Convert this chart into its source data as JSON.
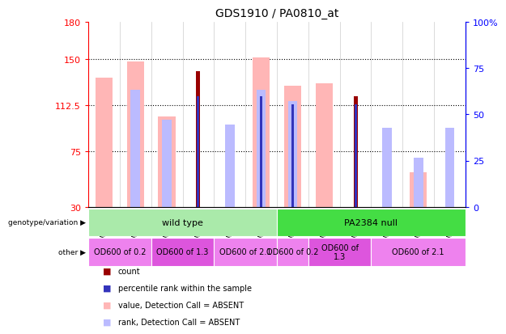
{
  "title": "GDS1910 / PA0810_at",
  "samples": [
    "GSM63145",
    "GSM63154",
    "GSM63149",
    "GSM63157",
    "GSM63152",
    "GSM63162",
    "GSM63125",
    "GSM63153",
    "GSM63147",
    "GSM63155",
    "GSM63150",
    "GSM63158"
  ],
  "ylim_left": [
    30,
    180
  ],
  "ylim_right": [
    0,
    100
  ],
  "yticks_left": [
    30,
    75,
    112.5,
    150,
    180
  ],
  "yticks_right": [
    0,
    25,
    50,
    75,
    100
  ],
  "ytick_labels_left": [
    "30",
    "75",
    "112.5",
    "150",
    "180"
  ],
  "ytick_labels_right": [
    "0",
    "25",
    "50",
    "75",
    "100%"
  ],
  "hlines": [
    75,
    112.5,
    150
  ],
  "count_bars": [
    0,
    0,
    0,
    140,
    0,
    0,
    0,
    0,
    120,
    0,
    0,
    0
  ],
  "value_bars": [
    135,
    148,
    103,
    0,
    0,
    151,
    128,
    130,
    0,
    0,
    58,
    0
  ],
  "rank_bars": [
    0,
    125,
    101,
    0,
    97,
    125,
    116,
    0,
    0,
    94,
    70,
    94
  ],
  "percentile_bars": [
    0,
    0,
    0,
    120,
    0,
    120,
    113,
    0,
    113,
    0,
    0,
    0
  ],
  "bar_base": 30,
  "count_color": "#990000",
  "value_color": "#FFB6B6",
  "rank_color": "#BBBBFF",
  "percentile_color": "#3333BB",
  "genotype_row": [
    {
      "label": "wild type",
      "span": [
        0,
        6
      ],
      "color": "#AAEAAA"
    },
    {
      "label": "PA2384 null",
      "span": [
        6,
        12
      ],
      "color": "#44DD44"
    }
  ],
  "other_row": [
    {
      "label": "OD600 of 0.2",
      "span": [
        0,
        2
      ],
      "color": "#EE82EE"
    },
    {
      "label": "OD600 of 1.3",
      "span": [
        2,
        4
      ],
      "color": "#DD55DD"
    },
    {
      "label": "OD600 of 2.1",
      "span": [
        4,
        6
      ],
      "color": "#EE82EE"
    },
    {
      "label": "OD600 of 0.2",
      "span": [
        6,
        7
      ],
      "color": "#EE82EE"
    },
    {
      "label": "OD600 of\n1.3",
      "span": [
        7,
        9
      ],
      "color": "#DD55DD"
    },
    {
      "label": "OD600 of 2.1",
      "span": [
        9,
        12
      ],
      "color": "#EE82EE"
    }
  ],
  "legend_items": [
    {
      "label": "count",
      "color": "#990000"
    },
    {
      "label": "percentile rank within the sample",
      "color": "#3333BB"
    },
    {
      "label": "value, Detection Call = ABSENT",
      "color": "#FFB6B6"
    },
    {
      "label": "rank, Detection Call = ABSENT",
      "color": "#BBBBFF"
    }
  ],
  "value_bar_width": 0.55,
  "rank_bar_width": 0.3,
  "count_bar_width": 0.13,
  "pct_bar_width": 0.08
}
